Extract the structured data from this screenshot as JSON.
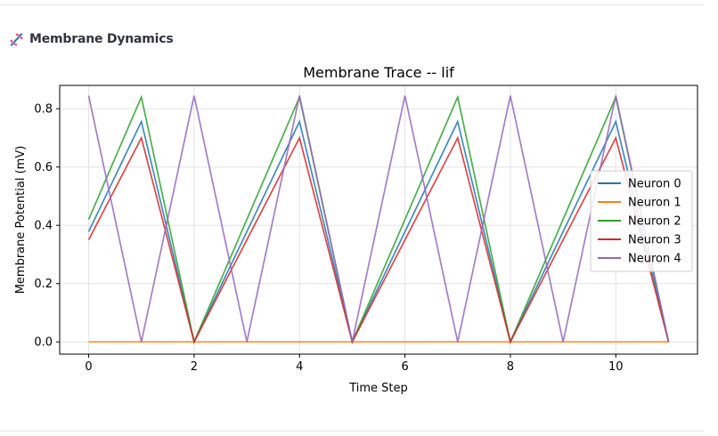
{
  "section": {
    "title": "Membrane Dynamics",
    "icon": "dna-icon"
  },
  "chart_data": {
    "type": "line",
    "title": "Membrane Trace -- lif",
    "xlabel": "Time Step",
    "ylabel": "Membrane Potential (mV)",
    "x": [
      0,
      1,
      2,
      3,
      4,
      5,
      6,
      7,
      8,
      9,
      10,
      11
    ],
    "xlim": [
      -0.55,
      11.55
    ],
    "ylim": [
      -0.042,
      0.88
    ],
    "xticks": [
      0,
      2,
      4,
      6,
      8,
      10
    ],
    "yticks": [
      0.0,
      0.2,
      0.4,
      0.6,
      0.8
    ],
    "ytick_labels": [
      "0.0",
      "0.2",
      "0.4",
      "0.6",
      "0.8"
    ],
    "grid": true,
    "legend_position": "center-right",
    "series": [
      {
        "name": "Neuron 0",
        "color": "#1f77b4",
        "values": [
          0.378,
          0.756,
          0.0,
          0.378,
          0.756,
          0.0,
          0.378,
          0.756,
          0.0,
          0.378,
          0.756,
          0.0
        ]
      },
      {
        "name": "Neuron 1",
        "color": "#ff7f0e",
        "values": [
          0.0,
          0.0,
          0.0,
          0.0,
          0.0,
          0.0,
          0.0,
          0.0,
          0.0,
          0.0,
          0.0,
          0.0
        ]
      },
      {
        "name": "Neuron 2",
        "color": "#2ca02c",
        "values": [
          0.42,
          0.84,
          0.0,
          0.42,
          0.84,
          0.0,
          0.42,
          0.84,
          0.0,
          0.42,
          0.84,
          0.0
        ]
      },
      {
        "name": "Neuron 3",
        "color": "#d62728",
        "values": [
          0.35,
          0.7,
          0.0,
          0.35,
          0.7,
          0.0,
          0.35,
          0.7,
          0.0,
          0.35,
          0.7,
          0.0
        ]
      },
      {
        "name": "Neuron 4",
        "color": "#9467bd",
        "values": [
          0.845,
          0.0,
          0.845,
          0.0,
          0.845,
          0.0,
          0.845,
          0.0,
          0.845,
          0.0,
          0.845,
          0.0
        ]
      }
    ]
  }
}
